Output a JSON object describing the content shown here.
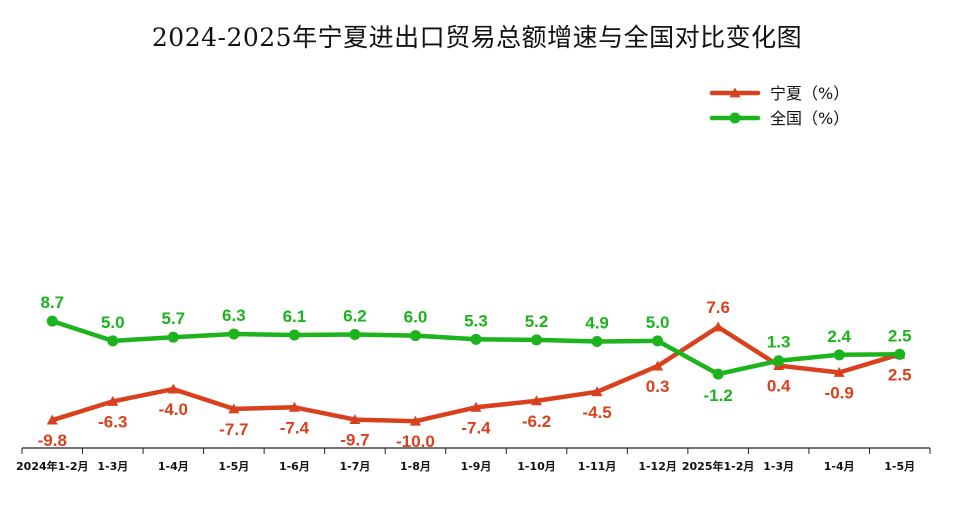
{
  "chart_data": {
    "type": "line",
    "title": "2024-2025年宁夏进出口贸易总额增速与全国对比变化图",
    "categories": [
      "2024年1-2月",
      "1-3月",
      "1-4月",
      "1-5月",
      "1-6月",
      "1-7月",
      "1-8月",
      "1-9月",
      "1-10月",
      "1-11月",
      "1-12月",
      "2025年1-2月",
      "1-3月",
      "1-4月",
      "1-5月"
    ],
    "series": [
      {
        "name": "宁夏（%）",
        "color": "#D9411E",
        "marker": "triangle",
        "values": [
          -9.8,
          -6.3,
          -4.0,
          -7.7,
          -7.4,
          -9.7,
          -10.0,
          -7.4,
          -6.2,
          -4.5,
          0.3,
          7.6,
          0.4,
          -0.9,
          2.5
        ],
        "labels": [
          "-9.8",
          "-6.3",
          "-4.0",
          "-7.7",
          "-7.4",
          "-9.7",
          "-10.0",
          "-7.4",
          "-6.2",
          "-4.5",
          "0.3",
          "7.6",
          "0.4",
          "-0.9",
          "2.5"
        ]
      },
      {
        "name": "全国（%）",
        "color": "#1DB31D",
        "marker": "circle",
        "values": [
          8.7,
          5.0,
          5.7,
          6.3,
          6.1,
          6.2,
          6.0,
          5.3,
          5.2,
          4.9,
          5.0,
          -1.2,
          1.3,
          2.4,
          2.5
        ],
        "labels": [
          "8.7",
          "5.0",
          "5.7",
          "6.3",
          "6.1",
          "6.2",
          "6.0",
          "5.3",
          "5.2",
          "4.9",
          "5.0",
          "-1.2",
          "1.3",
          "2.4",
          "2.5"
        ]
      }
    ],
    "ylim": [
      -15,
      50
    ],
    "grid": false,
    "legend": "top-right",
    "xlabel": "",
    "ylabel": ""
  }
}
